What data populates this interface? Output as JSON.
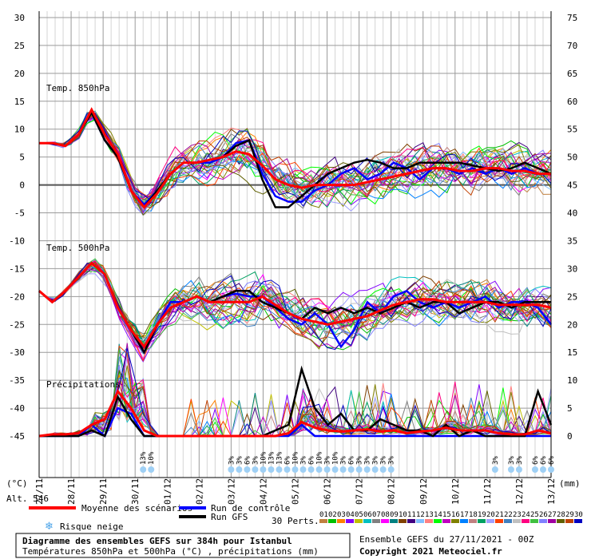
{
  "chart_data": {
    "type": "line",
    "title": "Diagramme des ensembles GEFS sur 384h pour Istanbul",
    "subtitle": "Températures 850hPa et 500hPa (°C) , précipitations (mm)",
    "left_axis": {
      "unit_label": "(°C)",
      "ticks": [
        30,
        25,
        20,
        15,
        10,
        5,
        0,
        -5,
        -10,
        -15,
        -20,
        -25,
        -30,
        -35,
        -40,
        -45
      ],
      "range": [
        -45,
        30
      ]
    },
    "right_axis": {
      "unit_label": "(mm)",
      "ticks": [
        75,
        70,
        65,
        60,
        55,
        50,
        45,
        40,
        35,
        30,
        25,
        20,
        15,
        10,
        5,
        0
      ],
      "range": [
        0,
        75
      ]
    },
    "x_dates": [
      "27/11",
      "28/11",
      "29/11",
      "30/11",
      "01/12",
      "02/12",
      "03/12",
      "04/12",
      "05/12",
      "06/12",
      "07/12",
      "08/12",
      "09/12",
      "10/12",
      "11/12",
      "12/12",
      "13/12"
    ],
    "alt_label": "Alt. 546",
    "panel_labels": {
      "t850": "Temp. 850hPa",
      "t500": "Temp. 500hPa",
      "precip": "Précipitations"
    },
    "series": [
      {
        "name": "Moyenne des scénarios",
        "color": "#ff0000",
        "t850": [
          7.5,
          7.5,
          7,
          9,
          13.5,
          9,
          5.5,
          -1,
          -4,
          -1.5,
          2,
          4,
          4,
          4.5,
          5,
          6,
          5.5,
          3.5,
          1,
          0,
          -0.5,
          0,
          0,
          0,
          0,
          0.5,
          1,
          1.5,
          2,
          2.5,
          3,
          3,
          2.5,
          2.5,
          3,
          3,
          2.5,
          2.5,
          2,
          2
        ],
        "t500": [
          -19,
          -21,
          -19,
          -16.5,
          -14,
          -16,
          -22,
          -26,
          -29,
          -25,
          -22,
          -21,
          -20,
          -21,
          -21,
          -21,
          -21,
          -20,
          -21.5,
          -23,
          -24,
          -24.5,
          -25,
          -24.5,
          -24,
          -23.5,
          -22.5,
          -21.5,
          -21,
          -20.5,
          -20.5,
          -21,
          -21,
          -21,
          -21,
          -21.5,
          -21.5,
          -21.5,
          -21.5,
          -22
        ],
        "precip": [
          0,
          0.3,
          0.3,
          0.5,
          2,
          3,
          8,
          5,
          1,
          0,
          0,
          0,
          0,
          0,
          0,
          0,
          0,
          0,
          0,
          0.5,
          2.5,
          1.5,
          1,
          0.8,
          1,
          1.2,
          0.8,
          1,
          0.5,
          0.8,
          1,
          1.5,
          1,
          1,
          1,
          0.5,
          0.3,
          0.3,
          1,
          0.5
        ]
      },
      {
        "name": "Run de contrôle",
        "color": "#0000ff",
        "t850": [
          7.5,
          7.5,
          7,
          9,
          13,
          8,
          5,
          -1,
          -3.5,
          -1,
          2,
          4,
          4,
          4,
          5,
          7.5,
          8,
          2,
          -2,
          -3,
          -3,
          -1,
          0,
          2,
          3,
          1,
          2,
          4,
          3,
          1,
          3,
          3,
          2,
          3,
          2,
          3,
          2,
          3,
          2,
          2
        ],
        "t500": [
          -19,
          -21,
          -19,
          -16.5,
          -14,
          -16,
          -22,
          -26,
          -30,
          -25,
          -21,
          -21,
          -20,
          -21,
          -20,
          -19.5,
          -20,
          -20,
          -22,
          -24,
          -25,
          -23,
          -25,
          -29,
          -26,
          -21,
          -23,
          -20,
          -19,
          -21,
          -22,
          -21,
          -22,
          -21,
          -20,
          -22,
          -21,
          -21,
          -22,
          -25
        ],
        "precip": [
          0,
          0,
          0,
          0,
          2,
          0,
          5,
          4,
          0,
          0,
          0,
          0,
          0,
          0,
          0,
          0,
          0,
          0,
          0,
          0,
          2,
          0,
          0,
          0,
          0,
          0,
          0,
          0,
          0,
          0,
          0,
          0,
          0,
          0,
          0,
          0,
          0,
          0,
          0,
          0
        ]
      },
      {
        "name": "Run GFS",
        "color": "#000000",
        "t850": [
          7.5,
          7.5,
          7,
          9,
          13,
          8,
          5,
          -1,
          -4,
          -1,
          2,
          4,
          4,
          4.5,
          5,
          7,
          8,
          1,
          -4,
          -4,
          -2,
          0,
          2,
          3,
          4,
          4.5,
          4,
          3,
          3,
          4,
          4,
          4,
          4,
          3.5,
          3,
          2.5,
          3,
          4,
          3,
          2
        ],
        "t500": [
          -19,
          -21,
          -19,
          -16.5,
          -14,
          -16,
          -22,
          -26,
          -30,
          -25,
          -22,
          -21,
          -20,
          -21,
          -20,
          -19,
          -19,
          -21,
          -22,
          -23,
          -24,
          -22,
          -23,
          -22,
          -23,
          -22,
          -23,
          -22,
          -21,
          -22,
          -21,
          -21,
          -23,
          -22,
          -21,
          -21,
          -22,
          -21,
          -21,
          -21
        ],
        "precip": [
          0,
          0,
          0,
          0,
          1,
          0,
          7,
          3,
          0,
          0,
          0,
          0,
          0,
          0,
          0,
          0,
          0,
          0,
          1,
          2,
          12,
          5,
          2,
          4,
          1,
          1,
          3,
          2,
          1,
          1,
          0,
          2,
          0,
          1,
          0,
          0,
          0,
          0,
          8,
          2
        ]
      }
    ]
  },
  "legend": {
    "mean_label": "Moyenne des scénarios",
    "control_label": "Run de contrôle",
    "gfs_label": "Run GFS",
    "snow_label": "Risque neige",
    "perts_label": "30 Perts.",
    "pert_numbers": [
      "01",
      "02",
      "03",
      "04",
      "05",
      "06",
      "07",
      "08",
      "09",
      "10",
      "11",
      "12",
      "13",
      "14",
      "15",
      "16",
      "17",
      "18",
      "19",
      "20",
      "21",
      "22",
      "23",
      "24",
      "25",
      "26",
      "27",
      "28",
      "29",
      "30"
    ],
    "pert_colors": [
      "#c08040",
      "#00c000",
      "#ff8000",
      "#8000ff",
      "#c0c000",
      "#00c0c0",
      "#808080",
      "#ff00ff",
      "#008080",
      "#804000",
      "#400080",
      "#80c0ff",
      "#ff8080",
      "#00ff00",
      "#c000c0",
      "#808000",
      "#0080ff",
      "#c08080",
      "#00a060",
      "#a0a0ff",
      "#ff4000",
      "#4080c0",
      "#c0c0c0",
      "#ff0080",
      "#40c040",
      "#8080ff",
      "#a000a0",
      "#606000",
      "#c04000",
      "#0000c0"
    ]
  },
  "snow_risk": [
    {
      "slot": 13,
      "label": "13%"
    },
    {
      "slot": 14,
      "label": "10%"
    },
    {
      "slot": 24,
      "label": "3%"
    },
    {
      "slot": 25,
      "label": "3%"
    },
    {
      "slot": 26,
      "label": "6%"
    },
    {
      "slot": 27,
      "label": "3%"
    },
    {
      "slot": 28,
      "label": "10%"
    },
    {
      "slot": 29,
      "label": "13%"
    },
    {
      "slot": 30,
      "label": "13%"
    },
    {
      "slot": 31,
      "label": "6%"
    },
    {
      "slot": 32,
      "label": "10%"
    },
    {
      "slot": 33,
      "label": "3%"
    },
    {
      "slot": 34,
      "label": "6%"
    },
    {
      "slot": 35,
      "label": "10%"
    },
    {
      "slot": 36,
      "label": "3%"
    },
    {
      "slot": 37,
      "label": "10%"
    },
    {
      "slot": 38,
      "label": "3%"
    },
    {
      "slot": 39,
      "label": "6%"
    },
    {
      "slot": 40,
      "label": "3%"
    },
    {
      "slot": 41,
      "label": "3%"
    },
    {
      "slot": 42,
      "label": "3%"
    },
    {
      "slot": 43,
      "label": "3%"
    },
    {
      "slot": 44,
      "label": "3%"
    },
    {
      "slot": 57,
      "label": "3%"
    },
    {
      "slot": 59,
      "label": "3%"
    },
    {
      "slot": 60,
      "label": "3%"
    },
    {
      "slot": 62,
      "label": "6%"
    },
    {
      "slot": 63,
      "label": "6%"
    },
    {
      "slot": 64,
      "label": "6%"
    }
  ],
  "footer": {
    "title": "Diagramme des ensembles GEFS sur 384h pour Istanbul",
    "subtitle": "Températures 850hPa et 500hPa (°C) , précipitations (mm)",
    "run": "Ensemble GEFS du 27/11/2021 - 00Z",
    "copyright": "Copyright 2021 Meteociel.fr"
  }
}
